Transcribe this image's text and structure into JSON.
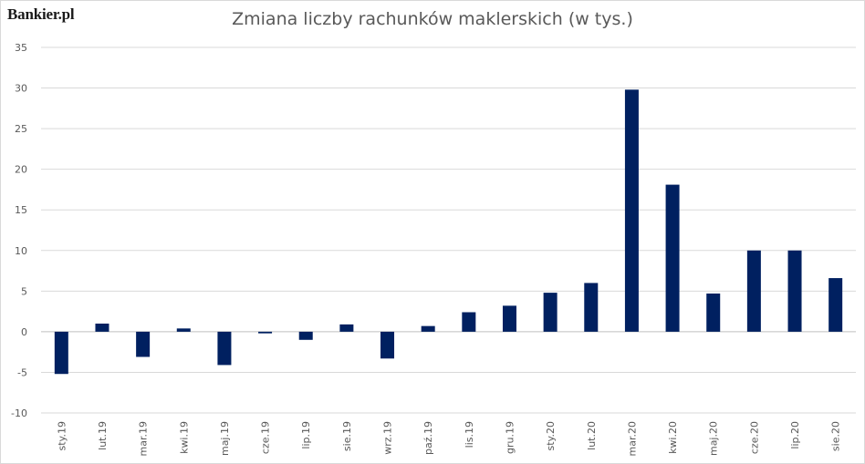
{
  "logo": "Bankier.pl",
  "chart_data": {
    "type": "bar",
    "title": "Zmiana liczby rachunków maklerskich (w tys.)",
    "xlabel": "",
    "ylabel": "",
    "ylim": [
      -10,
      35
    ],
    "yticks": [
      -10,
      -5,
      0,
      5,
      10,
      15,
      20,
      25,
      30,
      35
    ],
    "grid": true,
    "legend": "none",
    "bar_color": "#002060",
    "categories": [
      "sty.19",
      "lut.19",
      "mar.19",
      "kwi.19",
      "maj.19",
      "cze.19",
      "lip.19",
      "sie.19",
      "wrz.19",
      "paź.19",
      "lis.19",
      "gru.19",
      "sty.20",
      "lut.20",
      "mar.20",
      "kwi.20",
      "maj.20",
      "cze.20",
      "lip.20",
      "sie.20"
    ],
    "values": [
      -5.2,
      1.0,
      -3.1,
      0.4,
      -4.1,
      -0.2,
      -1.0,
      0.9,
      -3.3,
      0.7,
      2.4,
      3.2,
      4.8,
      6.0,
      29.8,
      18.1,
      4.7,
      10.0,
      10.0,
      6.6
    ]
  }
}
